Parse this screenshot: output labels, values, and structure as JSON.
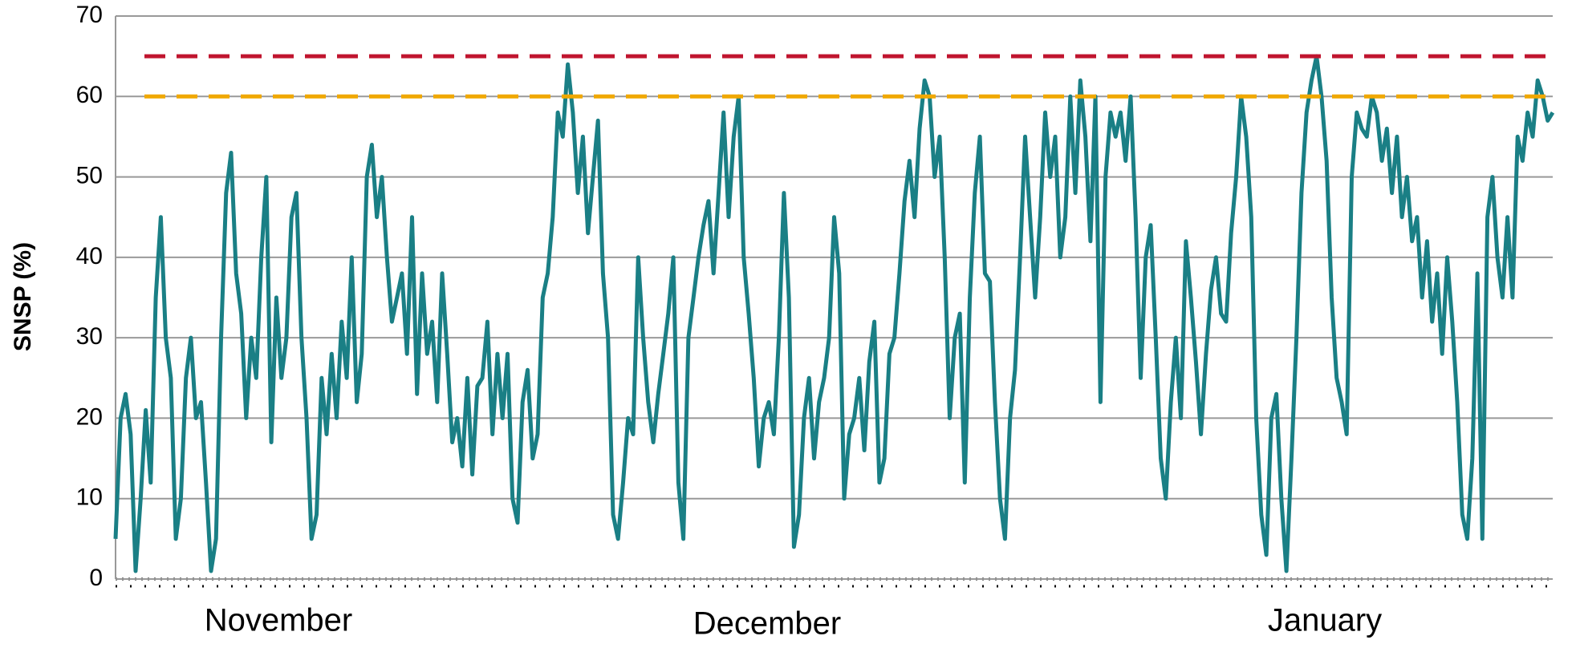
{
  "chart_data": {
    "type": "line",
    "y_label": "SNSP (%)",
    "x_labels": [
      "November",
      "December",
      "January"
    ],
    "ylim": [
      0,
      70
    ],
    "yticks": [
      0,
      10,
      20,
      30,
      40,
      50,
      60,
      70
    ],
    "grid": true,
    "reference_lines": [
      {
        "value": 65,
        "color": "#c0152f"
      },
      {
        "value": 60,
        "color": "#f0a800"
      }
    ],
    "series": [
      {
        "color": "#1a7f85",
        "values": [
          5,
          20,
          23,
          18,
          1,
          10,
          21,
          12,
          35,
          45,
          30,
          25,
          5,
          10,
          25,
          30,
          20,
          22,
          12,
          1,
          5,
          30,
          48,
          53,
          38,
          33,
          20,
          30,
          25,
          40,
          50,
          17,
          35,
          25,
          30,
          45,
          48,
          30,
          20,
          5,
          8,
          25,
          18,
          28,
          20,
          32,
          25,
          40,
          22,
          28,
          50,
          54,
          45,
          50,
          40,
          32,
          35,
          38,
          28,
          45,
          23,
          38,
          28,
          32,
          22,
          38,
          28,
          17,
          20,
          14,
          25,
          13,
          24,
          25,
          32,
          18,
          28,
          20,
          28,
          10,
          7,
          22,
          26,
          15,
          18,
          35,
          38,
          45,
          58,
          55,
          64,
          58,
          48,
          55,
          43,
          50,
          57,
          38,
          30,
          8,
          5,
          12,
          20,
          18,
          40,
          30,
          22,
          17,
          23,
          28,
          33,
          40,
          12,
          5,
          30,
          35,
          40,
          44,
          47,
          38,
          48,
          58,
          45,
          55,
          60,
          40,
          33,
          25,
          14,
          20,
          22,
          18,
          30,
          48,
          35,
          4,
          8,
          20,
          25,
          15,
          22,
          25,
          30,
          45,
          38,
          10,
          18,
          20,
          25,
          16,
          27,
          32,
          12,
          15,
          28,
          30,
          38,
          47,
          52,
          45,
          56,
          62,
          60,
          50,
          55,
          40,
          20,
          30,
          33,
          12,
          35,
          48,
          55,
          38,
          37,
          22,
          10,
          5,
          20,
          26,
          40,
          55,
          45,
          35,
          45,
          58,
          50,
          55,
          40,
          45,
          60,
          48,
          62,
          55,
          42,
          60,
          22,
          50,
          58,
          55,
          58,
          52,
          60,
          45,
          25,
          40,
          44,
          30,
          15,
          10,
          22,
          30,
          20,
          42,
          35,
          27,
          18,
          28,
          36,
          40,
          33,
          32,
          43,
          50,
          60,
          55,
          45,
          20,
          8,
          3,
          20,
          23,
          10,
          1,
          15,
          30,
          48,
          58,
          62,
          65,
          60,
          52,
          35,
          25,
          22,
          18,
          50,
          58,
          56,
          55,
          60,
          58,
          52,
          56,
          48,
          55,
          45,
          50,
          42,
          45,
          35,
          42,
          32,
          38,
          28,
          40,
          32,
          22,
          8,
          5,
          15,
          38,
          5,
          45,
          50,
          40,
          35,
          45,
          35,
          55,
          52,
          58,
          55,
          62,
          60,
          57,
          58
        ]
      }
    ]
  }
}
